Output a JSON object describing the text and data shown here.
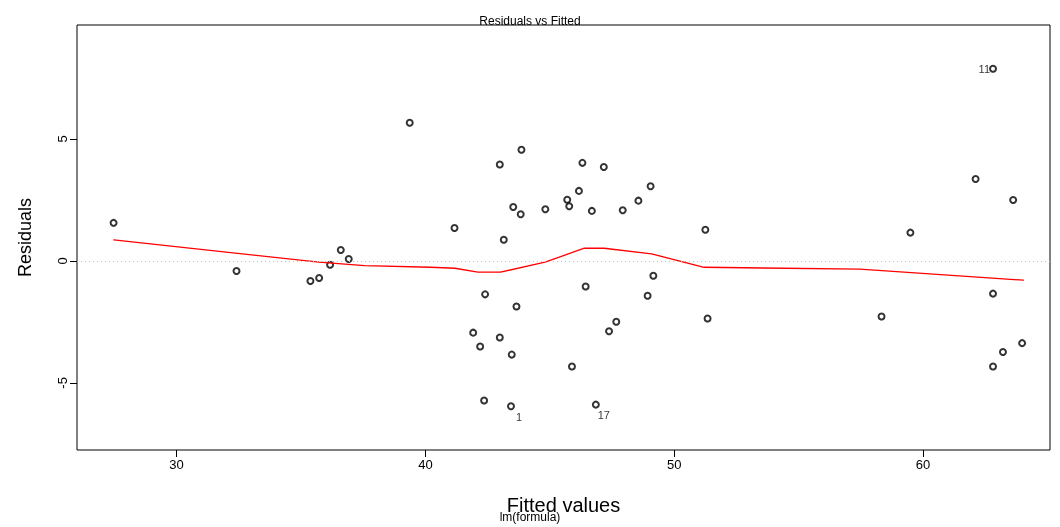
{
  "chart_data": {
    "type": "scatter",
    "title": "Residuals vs Fitted",
    "subtitle": "lm(formula)",
    "xlabel": "Fitted values",
    "ylabel": "Residuals",
    "xlim": [
      26.0,
      65.1
    ],
    "ylim": [
      -7.75,
      9.67
    ],
    "xticks": [
      30,
      40,
      50,
      60
    ],
    "yticks": [
      -5,
      0,
      5
    ],
    "grid": false,
    "ref_lines": [
      {
        "axis": "y",
        "value": 0,
        "color": "#bebebe",
        "line_style": "dotted"
      }
    ],
    "annotations": [
      {
        "text": "11",
        "x": 62.81,
        "y": 7.88
      },
      {
        "text": "1",
        "x": 43.44,
        "y": -5.96
      },
      {
        "text": "17",
        "x": 46.85,
        "y": -5.89
      }
    ],
    "series": [
      {
        "marker": "circle",
        "color": "#000000",
        "x": [
          27.47,
          32.41,
          35.38,
          35.73,
          36.17,
          36.6,
          36.92,
          39.37,
          41.17,
          42.99,
          43.86,
          43.53,
          43.83,
          43.15,
          44.82,
          45.7,
          45.78,
          46.17,
          46.31,
          47.17,
          46.69,
          47.93,
          48.56,
          49.05,
          51.25,
          42.4,
          43.66,
          41.92,
          42.99,
          42.2,
          43.47,
          42.36,
          43.44,
          46.44,
          48.93,
          49.16,
          47.67,
          47.38,
          45.89,
          46.85,
          51.34,
          59.49,
          58.33,
          62.11,
          62.81,
          63.62,
          62.81,
          63.98,
          63.21,
          62.81
        ],
        "values": [
          1.56,
          -0.41,
          -0.82,
          -0.7,
          -0.16,
          0.45,
          0.08,
          5.66,
          1.35,
          3.95,
          4.56,
          2.21,
          1.91,
          0.87,
          2.12,
          2.51,
          2.24,
          2.87,
          4.02,
          3.85,
          2.05,
          2.08,
          2.47,
          3.06,
          1.28,
          -1.37,
          -1.87,
          -2.94,
          -3.14,
          -3.51,
          -3.84,
          -5.72,
          -5.96,
          -1.05,
          -1.43,
          -0.61,
          -2.49,
          -2.88,
          -4.33,
          -5.89,
          -2.36,
          1.16,
          -2.28,
          3.36,
          7.88,
          2.5,
          -1.34,
          -3.37,
          -3.73,
          -4.33
        ]
      },
      {
        "type": "line",
        "color": "#ff0000",
        "x": [
          27.48,
          35.72,
          37.56,
          40.2,
          41.19,
          42.11,
          43.02,
          44.81,
          46.39,
          47.18,
          49.09,
          51.2,
          57.46,
          64.03
        ],
        "values": [
          0.86,
          -0.05,
          -0.19,
          -0.26,
          -0.3,
          -0.46,
          -0.46,
          -0.05,
          0.52,
          0.52,
          0.29,
          -0.26,
          -0.34,
          -0.79
        ]
      }
    ]
  }
}
